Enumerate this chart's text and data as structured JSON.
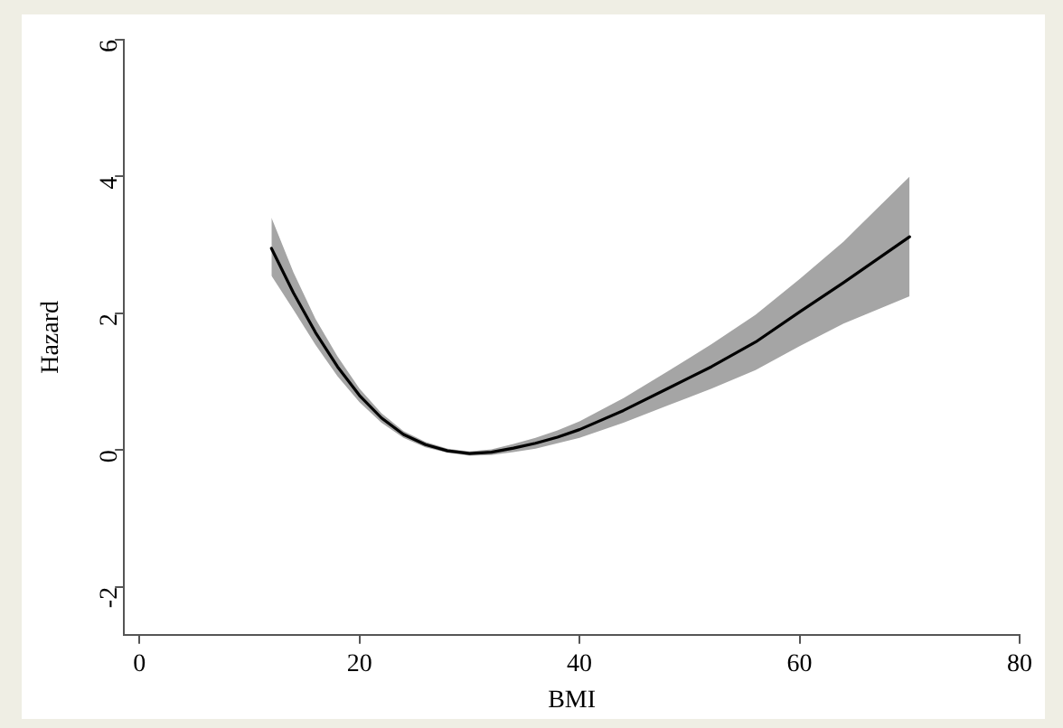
{
  "chart_data": {
    "type": "line",
    "xlabel": "BMI",
    "ylabel": "Hazard",
    "xlim": [
      -1.4,
      80
    ],
    "xticks": [
      0,
      20,
      40,
      60,
      80
    ],
    "ylim": [
      -2.7,
      6
    ],
    "yticks": [
      -2,
      0,
      2,
      4,
      6
    ],
    "grid": false,
    "legend": false,
    "marker": "none",
    "line_style": "solid",
    "x": [
      12,
      14,
      16,
      18,
      20,
      22,
      24,
      26,
      28,
      30,
      32,
      34,
      36,
      38,
      40,
      44,
      48,
      52,
      56,
      60,
      64,
      70
    ],
    "series": [
      {
        "color": "#000000",
        "values": [
          2.95,
          2.3,
          1.72,
          1.22,
          0.8,
          0.47,
          0.23,
          0.08,
          -0.01,
          -0.05,
          -0.03,
          0.03,
          0.1,
          0.19,
          0.3,
          0.58,
          0.9,
          1.22,
          1.58,
          2.02,
          2.45,
          3.12
        ],
        "lower": [
          2.55,
          2.05,
          1.54,
          1.08,
          0.7,
          0.4,
          0.18,
          0.04,
          -0.04,
          -0.08,
          -0.07,
          -0.03,
          0.02,
          0.1,
          0.18,
          0.4,
          0.65,
          0.9,
          1.17,
          1.52,
          1.85,
          2.25
        ],
        "upper": [
          3.4,
          2.6,
          1.92,
          1.37,
          0.9,
          0.54,
          0.28,
          0.12,
          0.02,
          -0.02,
          0.01,
          0.09,
          0.18,
          0.29,
          0.42,
          0.76,
          1.15,
          1.55,
          1.98,
          2.5,
          3.05,
          4.0
        ]
      }
    ]
  }
}
